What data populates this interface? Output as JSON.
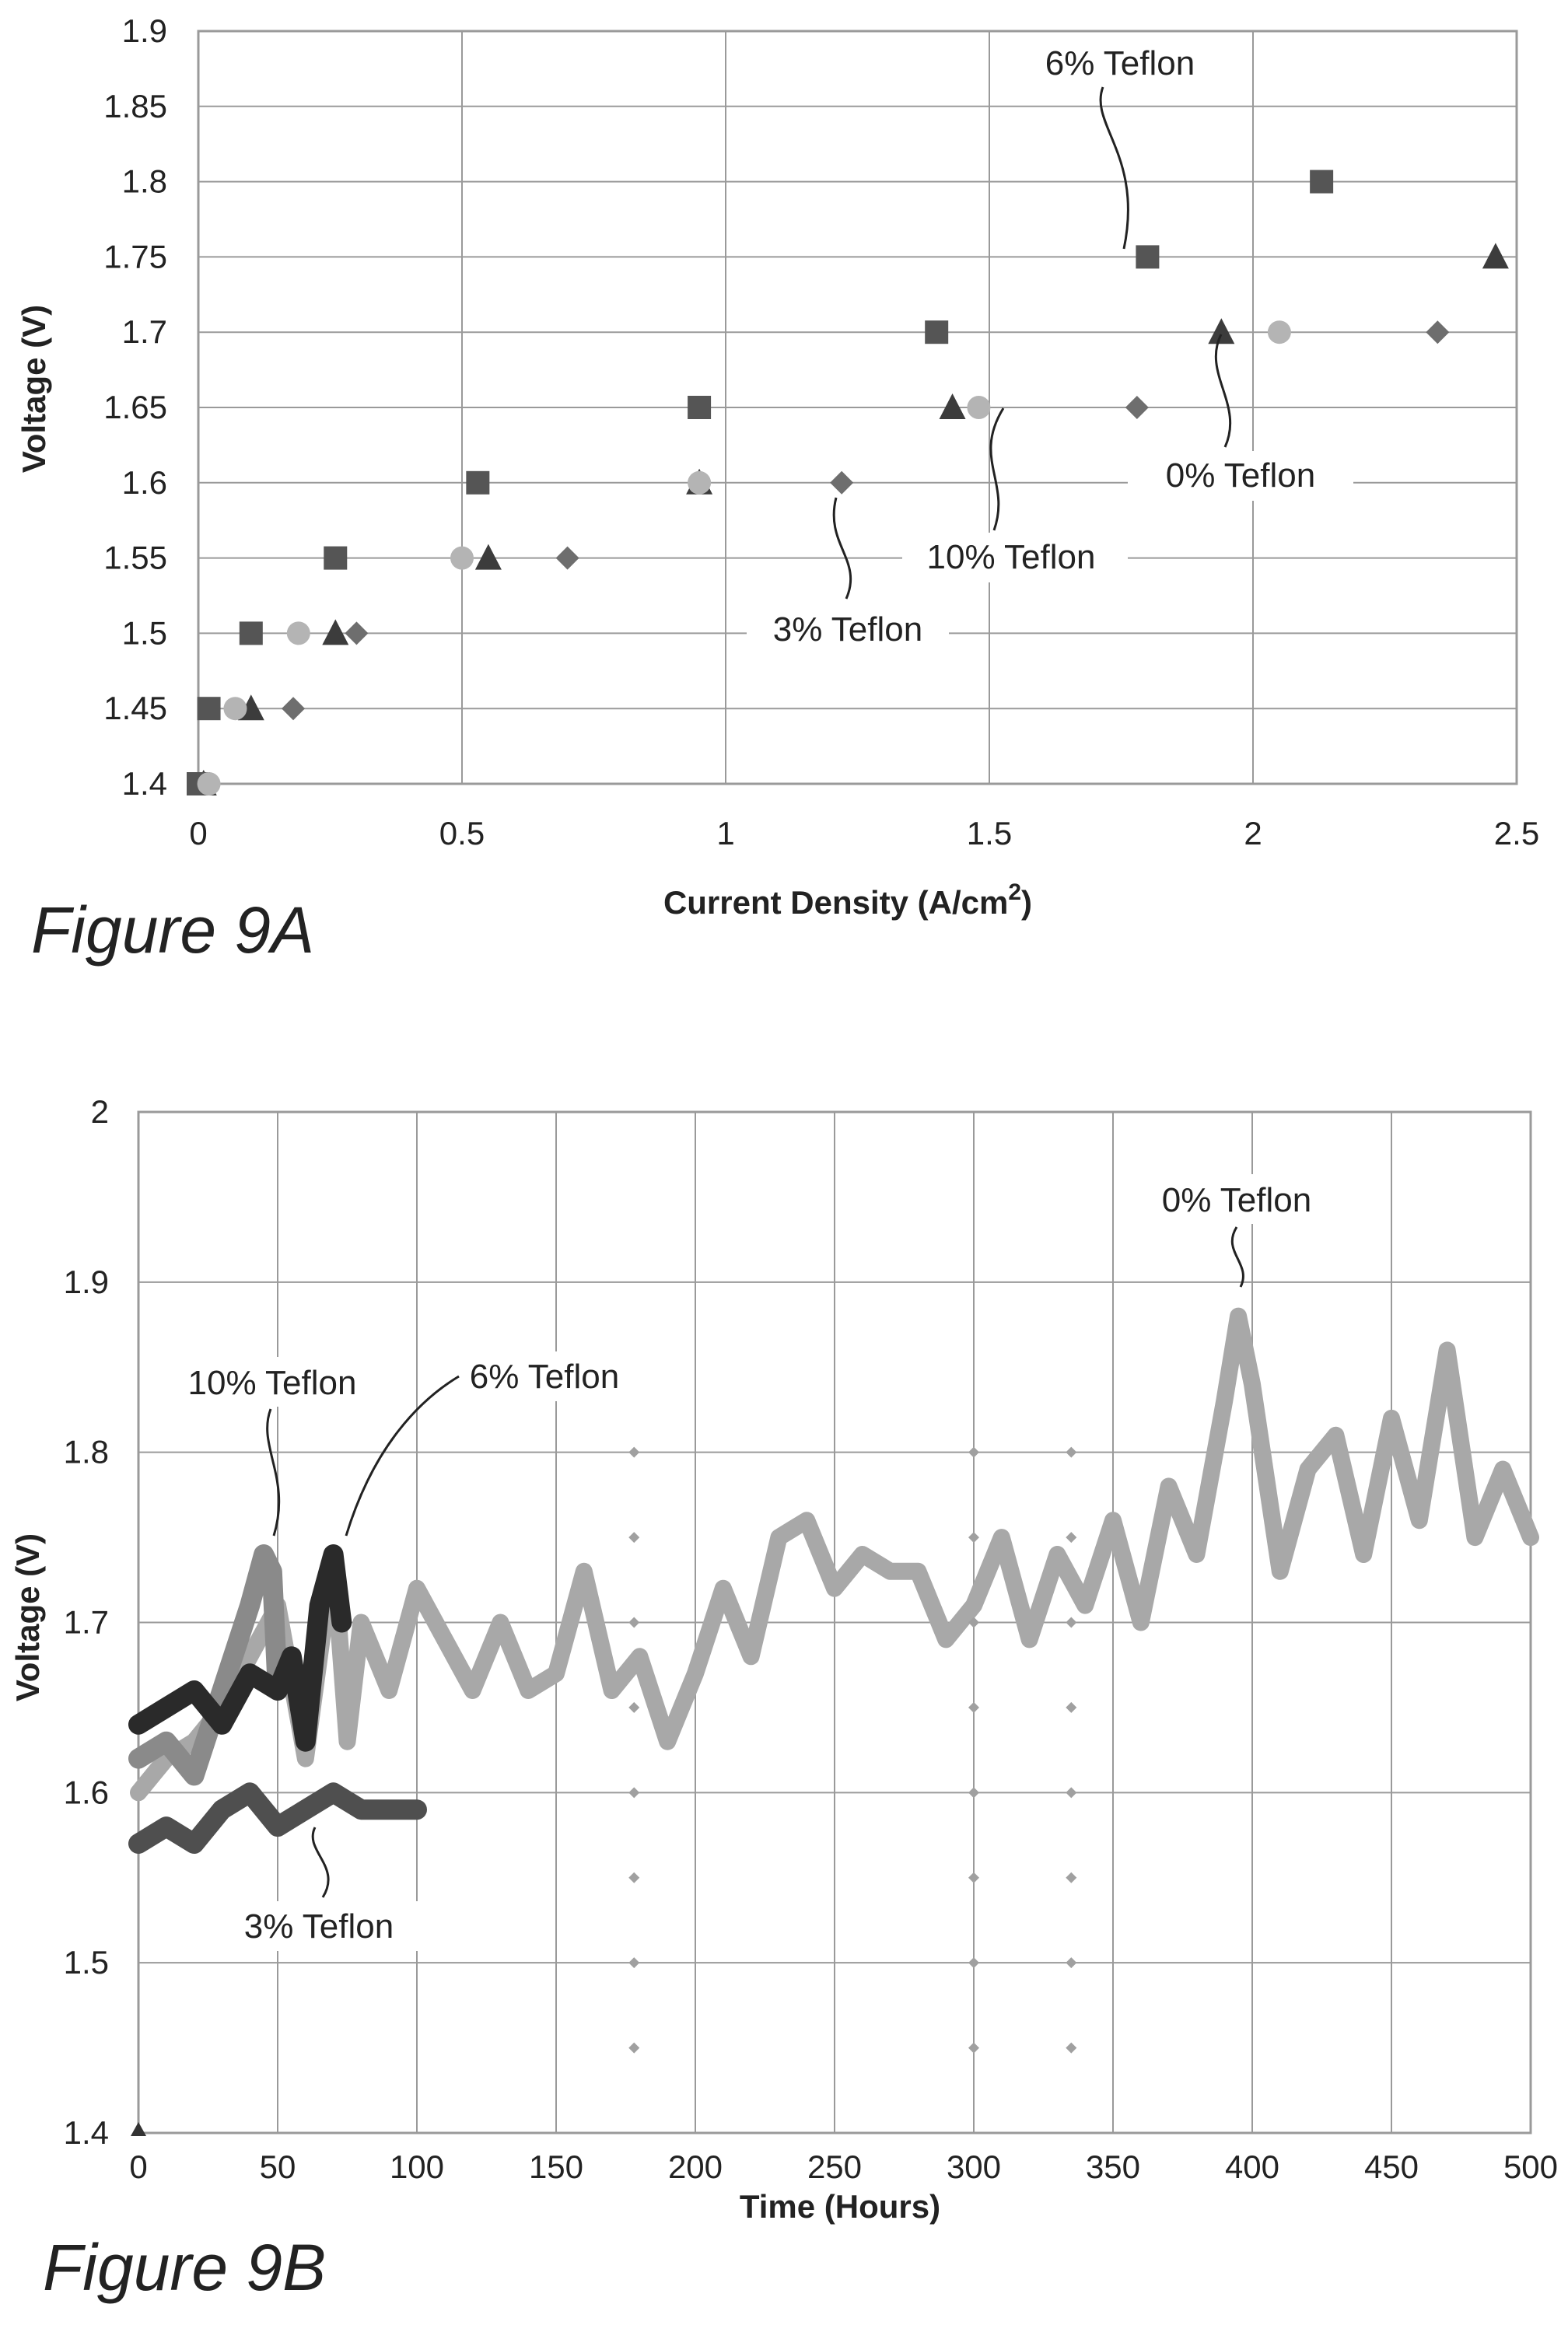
{
  "chart_data": [
    {
      "type": "scatter",
      "caption": "Figure 9A",
      "xlabel": "Current Density (A/cm",
      "xlabel_sup": "2",
      "xlabel_end": ")",
      "ylabel": "Voltage (V)",
      "xlim": [
        0,
        2.5
      ],
      "ylim": [
        1.4,
        1.9
      ],
      "xticks": [
        "0",
        "0.5",
        "1",
        "1.5",
        "2",
        "2.5"
      ],
      "yticks": [
        "1.4",
        "1.45",
        "1.5",
        "1.55",
        "1.6",
        "1.65",
        "1.7",
        "1.75",
        "1.8",
        "1.85",
        "1.9"
      ],
      "grid": true,
      "series": [
        {
          "name": "0% Teflon",
          "marker": "triangle",
          "color": "#3c3c3c",
          "points": [
            [
              0.01,
              1.4
            ],
            [
              0.1,
              1.45
            ],
            [
              0.26,
              1.5
            ],
            [
              0.55,
              1.55
            ],
            [
              0.95,
              1.6
            ],
            [
              1.43,
              1.65
            ],
            [
              1.94,
              1.7
            ],
            [
              2.46,
              1.75
            ]
          ]
        },
        {
          "name": "3% Teflon",
          "marker": "diamond",
          "color": "#6e6e6e",
          "points": [
            [
              0.01,
              1.4
            ],
            [
              0.18,
              1.45
            ],
            [
              0.3,
              1.5
            ],
            [
              0.7,
              1.55
            ],
            [
              1.22,
              1.6
            ],
            [
              1.78,
              1.65
            ],
            [
              2.35,
              1.7
            ]
          ]
        },
        {
          "name": "6% Teflon",
          "marker": "square",
          "color": "#555555",
          "points": [
            [
              0,
              1.4
            ],
            [
              0.02,
              1.45
            ],
            [
              0.1,
              1.5
            ],
            [
              0.26,
              1.55
            ],
            [
              0.53,
              1.6
            ],
            [
              0.95,
              1.65
            ],
            [
              1.4,
              1.7
            ],
            [
              1.8,
              1.75
            ],
            [
              2.13,
              1.8
            ]
          ]
        },
        {
          "name": "10% Teflon",
          "marker": "circle",
          "color": "#b4b4b4",
          "points": [
            [
              0.02,
              1.4
            ],
            [
              0.07,
              1.45
            ],
            [
              0.19,
              1.5
            ],
            [
              0.5,
              1.55
            ],
            [
              0.95,
              1.6
            ],
            [
              1.48,
              1.65
            ],
            [
              2.05,
              1.7
            ]
          ]
        }
      ],
      "annotations": [
        "6% Teflon",
        "0% Teflon",
        "10% Teflon",
        "3% Teflon"
      ]
    },
    {
      "type": "line",
      "caption": "Figure 9B",
      "xlabel": "Time (Hours)",
      "ylabel": "Voltage (V)",
      "xlim": [
        0,
        500
      ],
      "ylim": [
        1.4,
        2.0
      ],
      "xticks": [
        "0",
        "50",
        "100",
        "150",
        "200",
        "250",
        "300",
        "350",
        "400",
        "450",
        "500"
      ],
      "yticks": [
        "1.4",
        "1.5",
        "1.6",
        "1.7",
        "1.8",
        "1.9",
        "2"
      ],
      "grid": true,
      "series": [
        {
          "name": "0% Teflon",
          "color": "#a8a8a8",
          "x": [
            0,
            10,
            20,
            30,
            40,
            50,
            60,
            70,
            75,
            80,
            90,
            100,
            110,
            120,
            130,
            140,
            150,
            160,
            170,
            180,
            190,
            200,
            210,
            220,
            230,
            240,
            250,
            260,
            270,
            280,
            290,
            300,
            310,
            320,
            330,
            340,
            350,
            360,
            370,
            380,
            390,
            395,
            400,
            410,
            420,
            430,
            440,
            450,
            460,
            470,
            480,
            490,
            500
          ],
          "y": [
            1.6,
            1.62,
            1.63,
            1.65,
            1.68,
            1.71,
            1.62,
            1.74,
            1.63,
            1.7,
            1.66,
            1.72,
            1.69,
            1.66,
            1.7,
            1.66,
            1.67,
            1.73,
            1.66,
            1.68,
            1.63,
            1.67,
            1.72,
            1.68,
            1.75,
            1.76,
            1.72,
            1.74,
            1.73,
            1.73,
            1.69,
            1.71,
            1.75,
            1.69,
            1.74,
            1.71,
            1.76,
            1.7,
            1.78,
            1.74,
            1.83,
            1.88,
            1.84,
            1.73,
            1.79,
            1.81,
            1.74,
            1.82,
            1.76,
            1.86,
            1.75,
            1.79,
            1.75
          ]
        },
        {
          "name": "3% Teflon",
          "color": "#4f4f4f",
          "x": [
            0,
            10,
            20,
            30,
            40,
            50,
            60,
            70,
            80,
            90,
            100
          ],
          "y": [
            1.57,
            1.58,
            1.57,
            1.59,
            1.6,
            1.58,
            1.59,
            1.6,
            1.59,
            1.59,
            1.59
          ]
        },
        {
          "name": "6% Teflon",
          "color": "#2a2a2a",
          "x": [
            0,
            10,
            20,
            30,
            40,
            50,
            55,
            60,
            65,
            70,
            73
          ],
          "y": [
            1.64,
            1.65,
            1.66,
            1.64,
            1.67,
            1.66,
            1.68,
            1.63,
            1.71,
            1.74,
            1.7
          ]
        },
        {
          "name": "10% Teflon",
          "color": "#8a8a8a",
          "x": [
            0,
            10,
            20,
            30,
            40,
            45,
            48,
            50
          ],
          "y": [
            1.62,
            1.63,
            1.61,
            1.66,
            1.71,
            1.74,
            1.73,
            1.66
          ]
        }
      ],
      "dotted_columns_x": [
        178,
        300,
        335
      ],
      "annotations": [
        "0% Teflon",
        "10% Teflon",
        "6% Teflon",
        "3% Teflon"
      ]
    }
  ]
}
